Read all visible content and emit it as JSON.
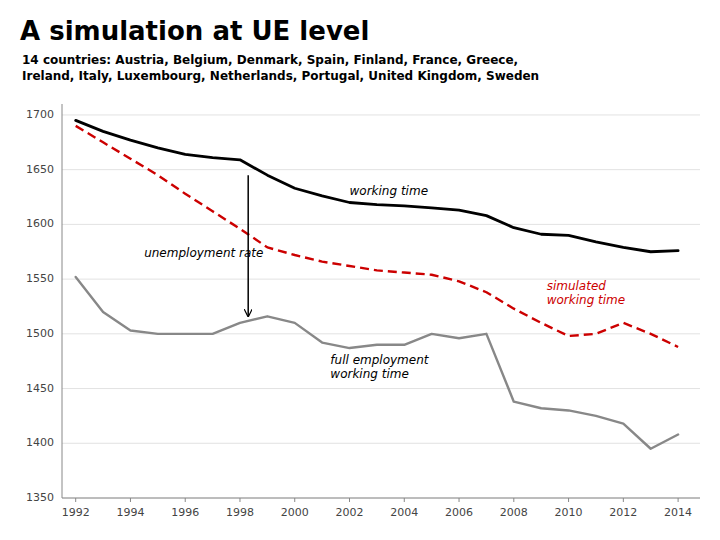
{
  "chart_data": {
    "type": "line",
    "title": "A simulation at UE level",
    "subtitle": "14 countries: Austria, Belgium, Denmark, Spain, Finland, France, Greece,\nIreland, Italy, Luxembourg, Netherlands, Portugal, United Kingdom, Sweden",
    "x": [
      1992,
      1993,
      1994,
      1995,
      1996,
      1997,
      1998,
      1999,
      2000,
      2001,
      2002,
      2003,
      2004,
      2005,
      2006,
      2007,
      2008,
      2009,
      2010,
      2011,
      2012,
      2013,
      2014
    ],
    "series": [
      {
        "color": "#000000",
        "line_style": "solid",
        "values": [
          1695,
          1685,
          1677,
          1670,
          1664,
          1661,
          1659,
          1645,
          1633,
          1626,
          1620,
          1618,
          1617,
          1615,
          1613,
          1608,
          1597,
          1591,
          1590,
          1584,
          1579,
          1575,
          1576
        ]
      },
      {
        "color": "#cc0000",
        "line_style": "dashed",
        "values": [
          1690,
          1675,
          1660,
          1645,
          1628,
          1612,
          1596,
          1579,
          1572,
          1566,
          1562,
          1558,
          1556,
          1554,
          1548,
          1538,
          1523,
          1510,
          1498,
          1500,
          1510,
          1500,
          1488
        ]
      },
      {
        "color": "#888888",
        "line_style": "solid",
        "values": [
          1552,
          1520,
          1503,
          1500,
          1500,
          1500,
          1510,
          1516,
          1510,
          1492,
          1487,
          1490,
          1490,
          1500,
          1496,
          1500,
          1438,
          1432,
          1430,
          1425,
          1418,
          1395,
          1408
        ]
      }
    ],
    "xlim": [
      1991.5,
      2014.8
    ],
    "xticks": [
      1992,
      1994,
      1996,
      1998,
      2000,
      2002,
      2004,
      2006,
      2008,
      2010,
      2012,
      2014
    ],
    "ylim": [
      1350,
      1710
    ],
    "yticks": [
      1350,
      1400,
      1450,
      1500,
      1550,
      1600,
      1650,
      1700
    ],
    "grid": true,
    "annotations": [
      {
        "text": "working time",
        "x": 2002.0,
        "y": 1627,
        "color": "#000000"
      },
      {
        "text": "simulated\nworking time",
        "x": 2009.2,
        "y": 1540,
        "color": "#cc0000"
      },
      {
        "text": "full employment\nworking time",
        "x": 2001.3,
        "y": 1472,
        "color": "#000000"
      },
      {
        "text": "unemployment rate",
        "x": 1994.5,
        "y": 1570,
        "color": "#000000"
      }
    ],
    "arrows": [
      {
        "x": 1998.3,
        "y_from": 1645,
        "y_to": 1516
      }
    ]
  }
}
